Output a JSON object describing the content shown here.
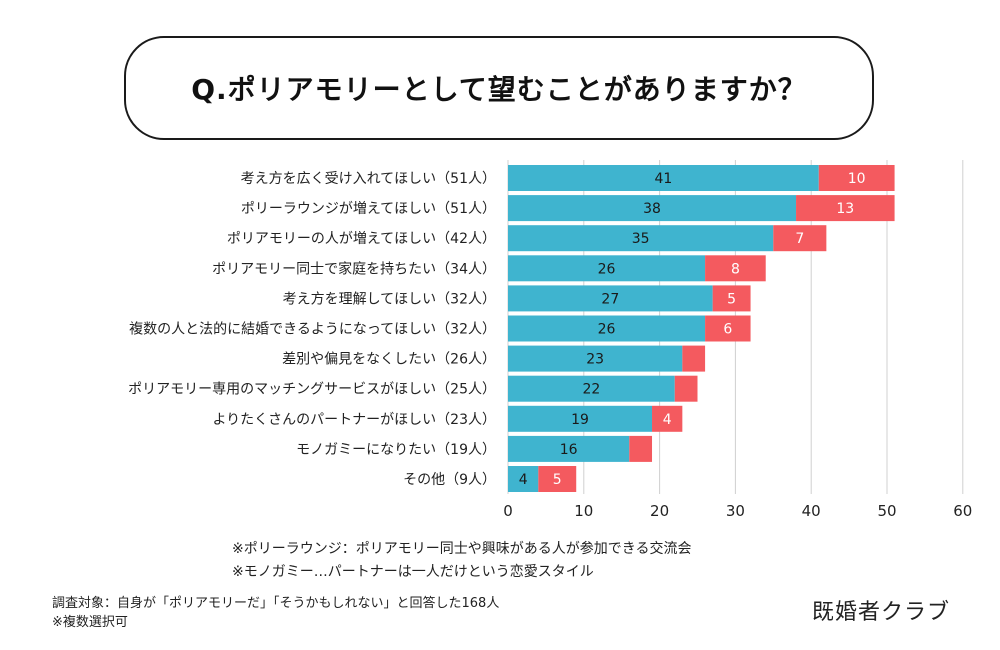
{
  "title": "Q.ポリアモリーとして望むことがありますか？",
  "colors": {
    "primary": "#3fb4cf",
    "secondary": "#f45a5f",
    "grid": "#d0d0d0",
    "text": "#222222"
  },
  "chart_data": {
    "type": "bar",
    "orientation": "horizontal",
    "stacked": true,
    "categories": [
      "考え方を広く受け入れてほしい（51人）",
      "ポリーラウンジが増えてほしい（51人）",
      "ポリアモリーの人が増えてほしい（42人）",
      "ポリアモリー同士で家庭を持ちたい（34人）",
      "考え方を理解してほしい（32人）",
      "複数の人と法的に結婚できるようになってほしい（32人）",
      "差別や偏見をなくしたい（26人）",
      "ポリアモリー専用のマッチングサービスがほしい（25人）",
      "よりたくさんのパートナーがほしい（23人）",
      "モノガミーになりたい（19人）",
      "その他（9人）"
    ],
    "series": [
      {
        "values": [
          41,
          38,
          35,
          26,
          27,
          26,
          23,
          22,
          19,
          16,
          4
        ],
        "labels": [
          "41",
          "38",
          "35",
          "26",
          "27",
          "26",
          "23",
          "22",
          "19",
          "16",
          "4"
        ]
      },
      {
        "values": [
          10,
          13,
          7,
          8,
          5,
          6,
          3,
          3,
          4,
          3,
          5
        ],
        "labels": [
          "10",
          "13",
          "7",
          "8",
          "5",
          "6",
          "",
          "",
          "4",
          "",
          "5"
        ]
      }
    ],
    "xlim": [
      0,
      60
    ],
    "xticks": [
      "0",
      "10",
      "20",
      "30",
      "40",
      "50",
      "60"
    ],
    "grid": true,
    "legend": false
  },
  "footnotes": [
    "※ポリーラウンジ：ポリアモリー同士や興味がある人が参加できる交流会",
    "※モノガミー…パートナーは一人だけという恋愛スタイル"
  ],
  "survey_note": [
    "調査対象：自身が「ポリアモリーだ」「そうかもしれない」と回答した168人",
    "※複数選択可"
  ],
  "brand": "既婚者クラブ"
}
